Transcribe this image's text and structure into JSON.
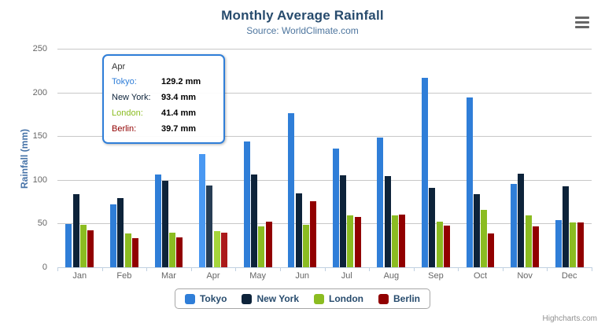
{
  "header": {
    "title": "Monthly Average Rainfall",
    "subtitle": "Source: WorldClimate.com",
    "context_button": {
      "icon": "hamburger-menu-icon"
    }
  },
  "credits_label": "Highcharts.com",
  "theme": {
    "title_color": "#274b6d",
    "subtitle_color": "#4d759e",
    "yaxis_title_color": "#4572a7",
    "axis_label_color": "#666666",
    "grid_color": "#c8c8c8",
    "axis_line_color": "#c0d0e0",
    "legend_text_color": "#274b6d",
    "legend_border_color": "#a7a7a7"
  },
  "chart_data": {
    "type": "bar",
    "title": "Monthly Average Rainfall",
    "subtitle": "Source: WorldClimate.com",
    "xlabel": "",
    "ylabel": "Rainfall (mm)",
    "ylim": [
      0,
      250
    ],
    "yticks": [
      0,
      50,
      100,
      150,
      200,
      250
    ],
    "grid": true,
    "legend_position": "bottom",
    "categories": [
      "Jan",
      "Feb",
      "Mar",
      "Apr",
      "May",
      "Jun",
      "Jul",
      "Aug",
      "Sep",
      "Oct",
      "Nov",
      "Dec"
    ],
    "series": [
      {
        "name": "Tokyo",
        "color": "#2f7ed8",
        "hover_color": "#4998f2",
        "values": [
          49.9,
          71.5,
          106.4,
          129.2,
          144.0,
          176.0,
          135.6,
          148.5,
          216.4,
          194.1,
          95.6,
          54.4
        ]
      },
      {
        "name": "New York",
        "color": "#0d233a",
        "hover_color": "#273d54",
        "values": [
          83.6,
          78.8,
          98.5,
          93.4,
          106.0,
          84.5,
          105.0,
          104.3,
          91.2,
          83.5,
          106.6,
          92.3
        ]
      },
      {
        "name": "London",
        "color": "#8bbc21",
        "hover_color": "#a5d63b",
        "values": [
          48.9,
          38.8,
          39.3,
          41.4,
          47.0,
          48.3,
          59.0,
          59.6,
          52.4,
          65.2,
          59.3,
          51.2
        ]
      },
      {
        "name": "Berlin",
        "color": "#910000",
        "hover_color": "#ab1a1a",
        "values": [
          42.4,
          33.2,
          34.5,
          39.7,
          52.6,
          75.5,
          57.4,
          60.4,
          47.6,
          39.1,
          46.8,
          51.1
        ]
      }
    ],
    "hovered_category": "Apr",
    "hovered_category_index": 3
  },
  "tooltip": {
    "header": "Apr",
    "border_color": "#2f7ed8",
    "rows": [
      {
        "label": "Tokyo:",
        "value": "129.2 mm",
        "color": "#2f7ed8"
      },
      {
        "label": "New York:",
        "value": "93.4 mm",
        "color": "#0d233a"
      },
      {
        "label": "London:",
        "value": "41.4 mm",
        "color": "#8bbc21"
      },
      {
        "label": "Berlin:",
        "value": "39.7 mm",
        "color": "#910000"
      }
    ]
  },
  "legend": {
    "items": [
      {
        "label": "Tokyo",
        "color": "#2f7ed8"
      },
      {
        "label": "New York",
        "color": "#0d233a"
      },
      {
        "label": "London",
        "color": "#8bbc21"
      },
      {
        "label": "Berlin",
        "color": "#910000"
      }
    ]
  }
}
